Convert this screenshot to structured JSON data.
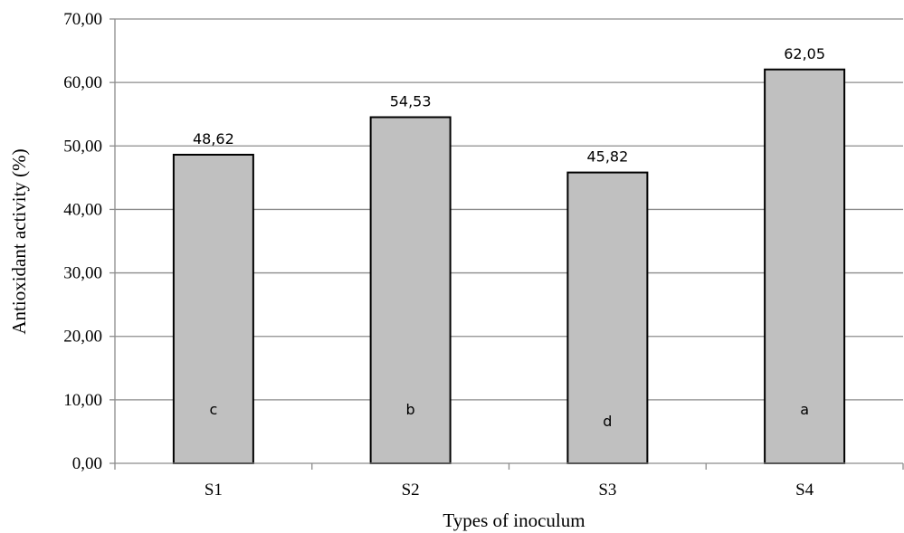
{
  "chart_data": {
    "type": "bar",
    "categories": [
      "S1",
      "S2",
      "S3",
      "S4"
    ],
    "values": [
      48.62,
      54.53,
      45.82,
      62.05
    ],
    "data_labels": [
      "48,62",
      "54,53",
      "45,82",
      "62,05"
    ],
    "significance_letters": [
      "c",
      "b",
      "d",
      "a"
    ],
    "title": "",
    "xlabel": "Types of inoculum",
    "ylabel": "Antioxidant activity (%)",
    "ylim": [
      0,
      70
    ],
    "y_ticks": [
      0,
      10,
      20,
      30,
      40,
      50,
      60,
      70
    ],
    "y_tick_labels": [
      "0,00",
      "10,00",
      "20,00",
      "30,00",
      "40,00",
      "50,00",
      "60,00",
      "70,00"
    ],
    "grid": "horizontal",
    "legend": "none",
    "colors": {
      "bar_fill": "#c0c0c0",
      "bar_stroke": "#000000",
      "grid": "#8c8c8c",
      "axis": "#8c8c8c"
    }
  }
}
